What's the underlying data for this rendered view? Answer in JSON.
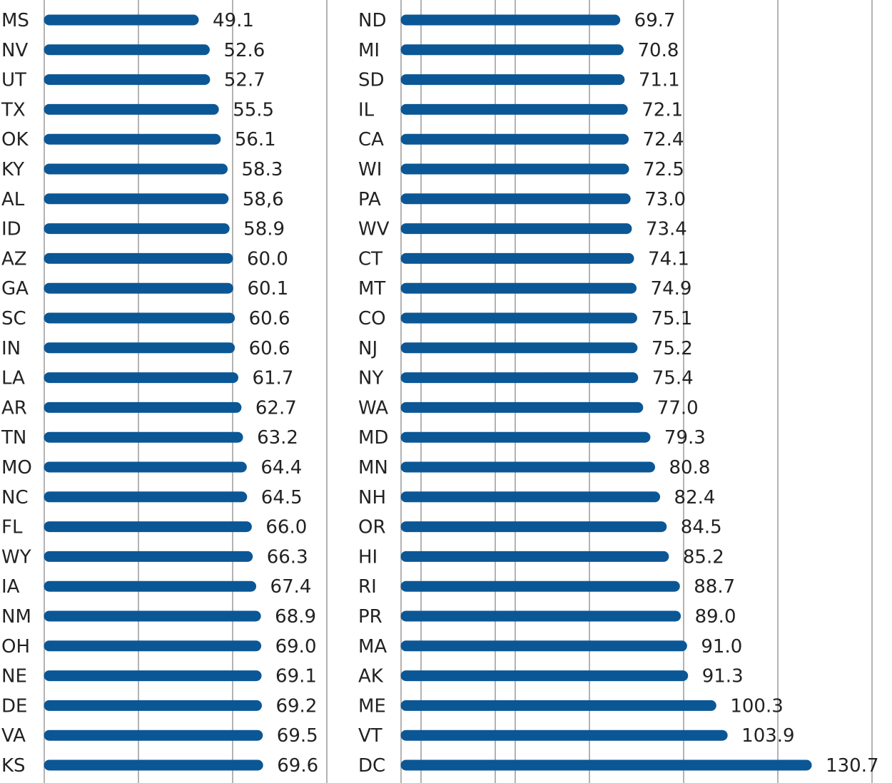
{
  "chart_data": [
    {
      "type": "bar",
      "orientation": "horizontal",
      "categories": [
        "MS",
        "NV",
        "UT",
        "TX",
        "OK",
        "KY",
        "AL",
        "ID",
        "AZ",
        "GA",
        "SC",
        "IN",
        "LA",
        "AR",
        "TN",
        "MO",
        "NC",
        "FL",
        "WY",
        "IA",
        "NM",
        "OH",
        "NE",
        "DE",
        "VA",
        "KS"
      ],
      "values": [
        49.1,
        52.6,
        52.7,
        55.5,
        56.1,
        58.3,
        58.6,
        58.9,
        60.0,
        60.1,
        60.6,
        60.6,
        61.7,
        62.7,
        63.2,
        64.4,
        64.5,
        66.0,
        66.3,
        67.4,
        68.9,
        69.0,
        69.1,
        69.2,
        69.5,
        69.6
      ],
      "value_labels": [
        "49.1",
        "52.6",
        "52.7",
        "55.5",
        "56.1",
        "58.3",
        "58,6",
        "58.9",
        "60.0",
        "60.1",
        "60.6",
        "60.6",
        "61.7",
        "62.7",
        "63.2",
        "64.4",
        "64.5",
        "66.0",
        "66.3",
        "67.4",
        "68.9",
        "69.0",
        "69.1",
        "69.2",
        "69.5",
        "69.6"
      ],
      "xlim": [
        0,
        150
      ],
      "grid": true,
      "bar_color": "#0b5796"
    },
    {
      "type": "bar",
      "orientation": "horizontal",
      "categories": [
        "ND",
        "MI",
        "SD",
        "IL",
        "CA",
        "WI",
        "PA",
        "WV",
        "CT",
        "MT",
        "CO",
        "NJ",
        "NY",
        "WA",
        "MD",
        "MN",
        "NH",
        "OR",
        "HI",
        "RI",
        "PR",
        "MA",
        "AK",
        "ME",
        "VT",
        "DC"
      ],
      "values": [
        69.7,
        70.8,
        71.1,
        72.1,
        72.4,
        72.5,
        73.0,
        73.4,
        74.1,
        74.9,
        75.1,
        75.2,
        75.4,
        77.0,
        79.3,
        80.8,
        82.4,
        84.5,
        85.2,
        88.7,
        89.0,
        91.0,
        91.3,
        100.3,
        103.9,
        130.7
      ],
      "value_labels": [
        "69.7",
        "70.8",
        "71.1",
        "72.1",
        "72.4",
        "72.5",
        "73.0",
        "73.4",
        "74.1",
        "74.9",
        "75.1",
        "75.2",
        "75.4",
        "77.0",
        "79.3",
        "80.8",
        "82.4",
        "84.5",
        "85.2",
        "88.7",
        "89.0",
        "91.0",
        "91.3",
        "100.3",
        "103.9",
        "130.7"
      ],
      "xlim": [
        0,
        150
      ],
      "grid": true,
      "bar_color": "#0b5796"
    }
  ]
}
